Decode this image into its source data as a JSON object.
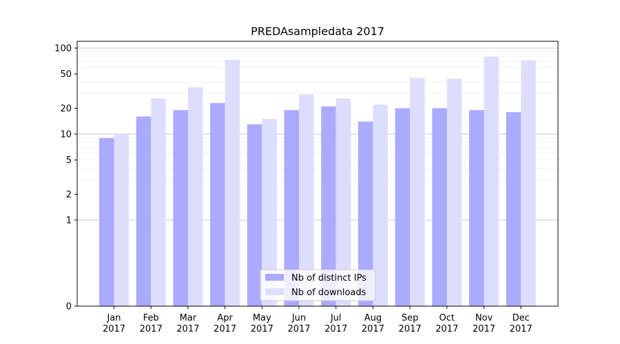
{
  "chart_data": {
    "type": "bar",
    "title": "PREDAsampledata 2017",
    "xlabel": "",
    "ylabel": "",
    "y_scale": "symlog",
    "ylim": [
      0,
      120
    ],
    "y_ticks": [
      0,
      1,
      2,
      5,
      10,
      20,
      50,
      100
    ],
    "y_tick_labels": [
      "0",
      "1",
      "2",
      "5",
      "10",
      "20",
      "50",
      "100"
    ],
    "categories": [
      "Jan\n2017",
      "Feb\n2017",
      "Mar\n2017",
      "Apr\n2017",
      "May\n2017",
      "Jun\n2017",
      "Jul\n2017",
      "Aug\n2017",
      "Sep\n2017",
      "Oct\n2017",
      "Nov\n2017",
      "Dec\n2017"
    ],
    "category_lines": [
      [
        "Jan",
        "2017"
      ],
      [
        "Feb",
        "2017"
      ],
      [
        "Mar",
        "2017"
      ],
      [
        "Apr",
        "2017"
      ],
      [
        "May",
        "2017"
      ],
      [
        "Jun",
        "2017"
      ],
      [
        "Jul",
        "2017"
      ],
      [
        "Aug",
        "2017"
      ],
      [
        "Sep",
        "2017"
      ],
      [
        "Oct",
        "2017"
      ],
      [
        "Nov",
        "2017"
      ],
      [
        "Dec",
        "2017"
      ]
    ],
    "series": [
      {
        "name": "Nb of distinct IPs",
        "color": "#aaaaff",
        "values": [
          9,
          16,
          19,
          23,
          13,
          19,
          21,
          14,
          20,
          20,
          19,
          18
        ]
      },
      {
        "name": "Nb of downloads",
        "color": "#ddddff",
        "values": [
          10,
          26,
          35,
          73,
          15,
          29,
          26,
          22,
          45,
          44,
          79,
          72
        ]
      }
    ],
    "grid": true,
    "legend_position": "lower-center"
  }
}
